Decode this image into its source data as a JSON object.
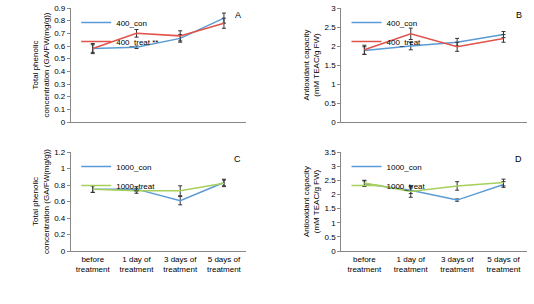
{
  "chart_data": [
    {
      "type": "line",
      "title": "A",
      "ylabel": "Total phenolic concentration (GA/FW(mg/g))",
      "categories": [
        null,
        null,
        null,
        null
      ],
      "series": [
        {
          "name": "400_con",
          "color": "#5b9bd5",
          "values": [
            0.58,
            0.59,
            0.66,
            0.82
          ],
          "errors": [
            0.03,
            0.01,
            0.03,
            0.04
          ]
        },
        {
          "name": "400_treat **",
          "color": "#e0524a",
          "values": [
            0.58,
            0.7,
            0.68,
            0.78
          ],
          "errors": [
            0.04,
            0.03,
            0.04,
            0.04
          ]
        }
      ],
      "ylim": [
        0,
        0.9
      ],
      "yticks": [
        0,
        0.1,
        0.2,
        0.3,
        0.4,
        0.5,
        0.6,
        0.7,
        0.8,
        0.9
      ],
      "grid": false,
      "legend": "upper left"
    },
    {
      "type": "line",
      "title": "B",
      "ylabel": "Antioxidant capacity (mM TEAC/g FW)",
      "categories": [
        null,
        null,
        null,
        null
      ],
      "series": [
        {
          "name": "400_con",
          "color": "#5b9bd5",
          "values": [
            1.88,
            2.0,
            2.1,
            2.3
          ],
          "errors": [
            0.1,
            0.1,
            0.1,
            0.08
          ]
        },
        {
          "name": "400_treat",
          "color": "#e0524a",
          "values": [
            1.9,
            2.32,
            1.98,
            2.2
          ],
          "errors": [
            0.12,
            0.15,
            0.12,
            0.1
          ]
        }
      ],
      "ylim": [
        0,
        3
      ],
      "yticks": [
        0,
        0.5,
        1,
        1.5,
        2,
        2.5,
        3
      ],
      "grid": false,
      "legend": "upper left"
    },
    {
      "type": "line",
      "title": "C",
      "ylabel": "Total phenolic concentration (GA/FW(mg/g))",
      "categories": [
        "before treatment",
        "1 day of treatment",
        "3 days of treatment",
        "5 days of treatment"
      ],
      "series": [
        {
          "name": "1000_con",
          "color": "#5b9bd5",
          "values": [
            0.75,
            0.75,
            0.61,
            0.83
          ],
          "errors": [
            0.04,
            0.03,
            0.05,
            0.04
          ]
        },
        {
          "name": "1000_treat",
          "color": "#a6d05a",
          "values": [
            0.75,
            0.73,
            0.73,
            0.82
          ],
          "errors": [
            0.04,
            0.03,
            0.06,
            0.04
          ]
        }
      ],
      "ylim": [
        0,
        1.2
      ],
      "yticks": [
        0,
        0.2,
        0.4,
        0.6,
        0.8,
        1,
        1.2
      ],
      "grid": false,
      "legend": "upper left"
    },
    {
      "type": "line",
      "title": "D",
      "ylabel": "Antioxidant capacity (mM TEAC/g FW)",
      "categories": [
        "before treatment",
        "1 day of treatment",
        "3 days of treatment",
        "5 days of treatment"
      ],
      "series": [
        {
          "name": "1000_con",
          "color": "#5b9bd5",
          "values": [
            2.38,
            2.15,
            1.8,
            2.35
          ],
          "errors": [
            0.1,
            0.12,
            0.04,
            0.1
          ]
        },
        {
          "name": "1000_treat",
          "color": "#a6d05a",
          "values": [
            2.4,
            2.1,
            2.3,
            2.42
          ],
          "errors": [
            0.1,
            0.2,
            0.15,
            0.12
          ]
        }
      ],
      "ylim": [
        0,
        3.5
      ],
      "yticks": [
        0,
        0.5,
        1,
        1.5,
        2,
        2.5,
        3,
        3.5
      ],
      "grid": false,
      "legend": "upper left"
    }
  ]
}
